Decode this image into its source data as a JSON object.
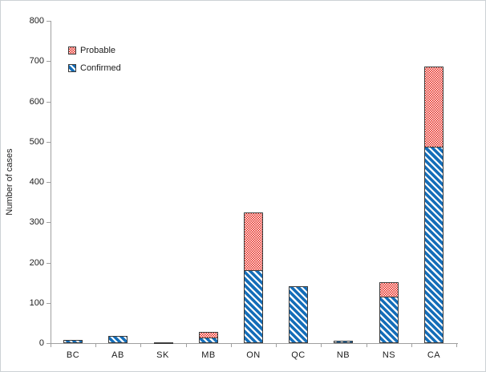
{
  "chart_data": {
    "type": "bar",
    "stacked": true,
    "title": "",
    "xlabel": "",
    "ylabel": "Number of cases",
    "ylim": [
      0,
      800
    ],
    "yticks": [
      0,
      100,
      200,
      300,
      400,
      500,
      600,
      700,
      800
    ],
    "grid": false,
    "legend_position": "top-left-inside",
    "categories": [
      "BC",
      "AB",
      "SK",
      "MB",
      "ON",
      "QC",
      "NB",
      "NS",
      "CA"
    ],
    "series": [
      {
        "name": "Confirmed",
        "pattern": "diagonal-stripes",
        "color": "#146db8",
        "values": [
          7,
          18,
          2,
          14,
          182,
          142,
          6,
          116,
          487
        ]
      },
      {
        "name": "Probable",
        "pattern": "checker-dots",
        "color": "#e51f14",
        "values": [
          0,
          0,
          0,
          16,
          146,
          0,
          0,
          38,
          200
        ]
      }
    ]
  },
  "colors": {
    "confirmed_blue": "#146db8",
    "probable_red": "#e51f14",
    "bar_border": "#3b3b3b",
    "axis_line": "#a0a0a0",
    "text": "#1c1c1c"
  }
}
